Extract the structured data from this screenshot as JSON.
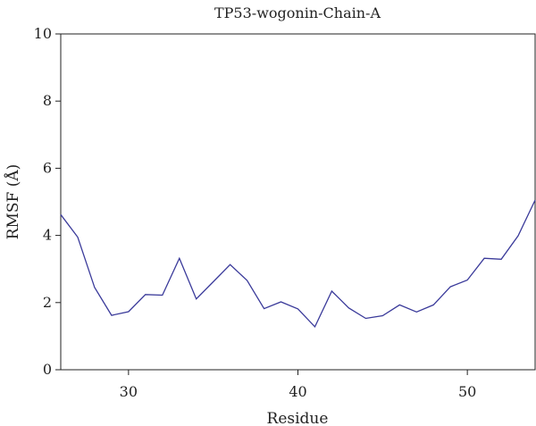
{
  "chart_data": {
    "type": "line",
    "title": "TP53-wogonin-Chain-A",
    "xlabel": "Residue",
    "ylabel": "RMSF (Å)",
    "xlim": [
      26,
      54
    ],
    "ylim": [
      0,
      10
    ],
    "xticks": [
      30,
      40,
      50
    ],
    "yticks": [
      0,
      2,
      4,
      6,
      8,
      10
    ],
    "grid": false,
    "line_color": "#3a3a9a",
    "series": [
      {
        "x": [
          26,
          27,
          28,
          29,
          30,
          31,
          32,
          33,
          34,
          35,
          36,
          37,
          38,
          39,
          40,
          41,
          42,
          43,
          44,
          45,
          46,
          47,
          48,
          49,
          50,
          51,
          52,
          53,
          54
        ],
        "y": [
          4.62,
          3.95,
          2.45,
          1.62,
          1.73,
          2.24,
          2.22,
          3.32,
          2.11,
          2.62,
          3.13,
          2.66,
          1.82,
          2.02,
          1.81,
          1.28,
          2.34,
          1.84,
          1.53,
          1.61,
          1.93,
          1.72,
          1.93,
          2.47,
          2.67,
          3.32,
          3.29,
          3.99,
          5.05
        ]
      }
    ]
  }
}
